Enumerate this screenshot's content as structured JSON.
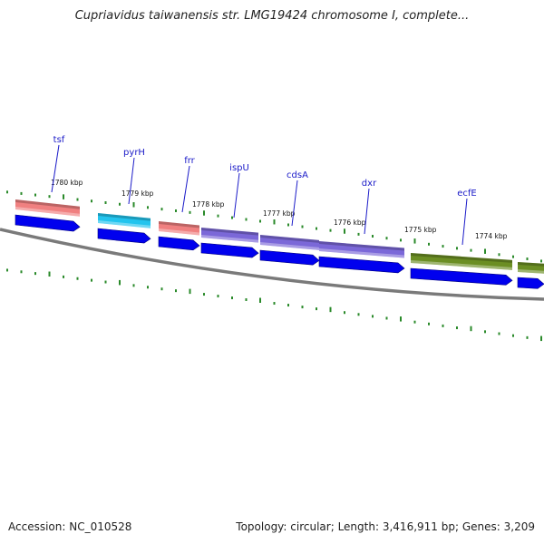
{
  "title": "Cupriavidus taiwanensis str. LMG19424 chromosome I, complete...",
  "footer": {
    "accession_label": "Accession:",
    "accession_value": "NC_010528",
    "topology_label": "Topology:",
    "topology_value": "circular;",
    "length_label": "Length:",
    "length_value": "3,416,911 bp;",
    "genes_label": "Genes:",
    "genes_value": "3,209"
  },
  "colors": {
    "tick": "#2a8a2a",
    "backbone": "#8a8a8a",
    "cds_arrow": "#0000ee",
    "label": "#1a1ac8",
    "pink": "#f08080",
    "cyan": "#22c4ee",
    "purple": "#7b68d8",
    "olive": "#6b8e23"
  },
  "kbp_labels": [
    "1780 kbp",
    "1779 kbp",
    "1778 kbp",
    "1777 kbp",
    "1776 kbp",
    "1775 kbp",
    "1774 kbp"
  ],
  "genes": [
    {
      "name": "tsf",
      "color": "pink"
    },
    {
      "name": "pyrH",
      "color": "cyan"
    },
    {
      "name": "frr",
      "color": "pink"
    },
    {
      "name": "ispU",
      "color": "purple"
    },
    {
      "name": "cdsA",
      "color": "purple"
    },
    {
      "name": "dxr",
      "color": "purple"
    },
    {
      "name": "ecfE",
      "color": "olive"
    },
    {
      "name": "",
      "color": "olive"
    }
  ]
}
